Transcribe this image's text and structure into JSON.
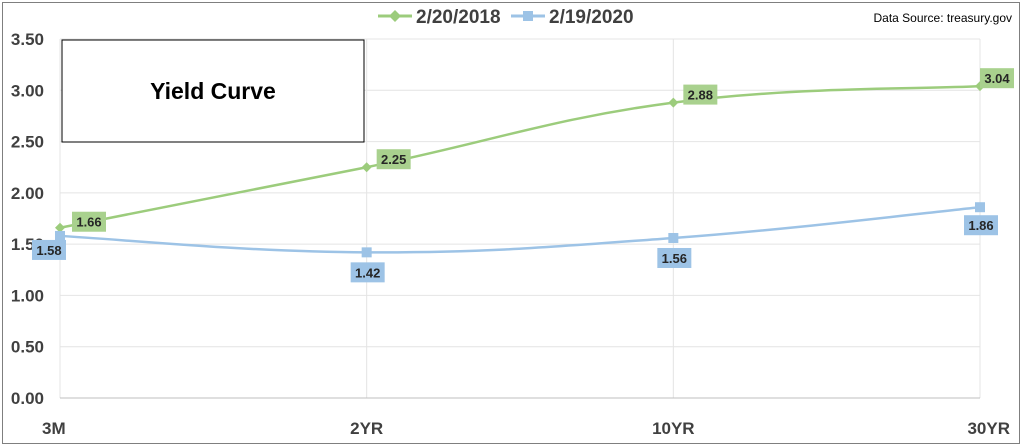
{
  "chart_data": {
    "type": "line",
    "title": "Yield Curve",
    "source": "Data Source: treasury.gov",
    "categories": [
      "3M",
      "2YR",
      "10YR",
      "30YR"
    ],
    "series": [
      {
        "name": "2/20/2018",
        "values": [
          1.66,
          2.25,
          2.88,
          3.04
        ],
        "labels": [
          "1.66",
          "2.25",
          "2.88",
          "3.04"
        ],
        "color": "#9ccc7c",
        "label_bg": "#a9d18e",
        "marker": "diamond"
      },
      {
        "name": "2/19/2020",
        "values": [
          1.58,
          1.42,
          1.56,
          1.86
        ],
        "labels": [
          "1.58",
          "1.42",
          "1.56",
          "1.86"
        ],
        "color": "#9dc3e6",
        "label_bg": "#9dc3e6",
        "marker": "square"
      }
    ],
    "ylim": [
      0,
      3.5
    ],
    "yticks": [
      "0.00",
      "0.50",
      "1.00",
      "1.50",
      "2.00",
      "2.50",
      "3.00",
      "3.50"
    ],
    "ytick_values": [
      0,
      0.5,
      1.0,
      1.5,
      2.0,
      2.5,
      3.0,
      3.5
    ],
    "grid": true,
    "smooth": true,
    "legend_position": "top"
  }
}
